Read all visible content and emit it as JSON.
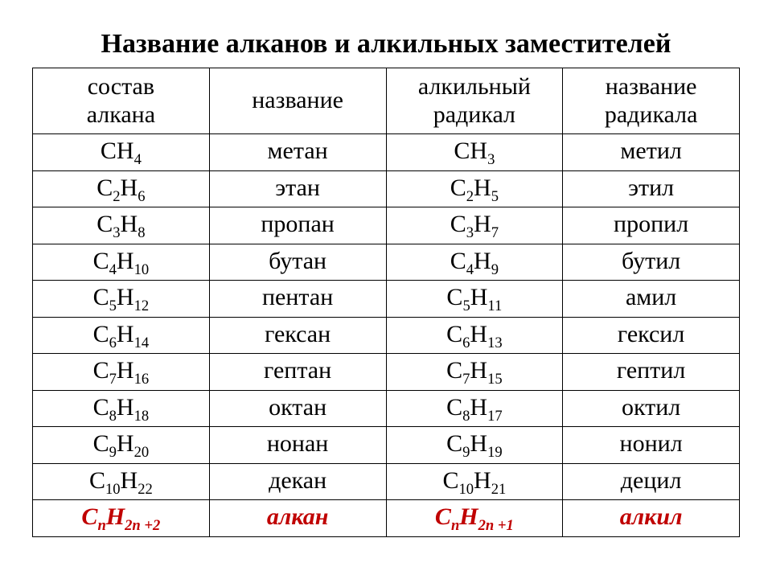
{
  "title": "Название алканов и алкильных заместителей",
  "headers": {
    "c0l1": "состав",
    "c0l2": "алкана",
    "c1l1": "название",
    "c1l2": "",
    "c2l1": "алкильный",
    "c2l2": "радикал",
    "c3l1": "название",
    "c3l2": "радикала"
  },
  "rows": [
    {
      "alk": {
        "C": "C",
        "cs": "",
        "H": "H",
        "hs": "4"
      },
      "alk_name": "метан",
      "rad": {
        "C": "C",
        "cs": "",
        "H": "H",
        "hs": "3"
      },
      "rad_name": "метил"
    },
    {
      "alk": {
        "C": "C",
        "cs": "2",
        "H": "H",
        "hs": "6"
      },
      "alk_name": "этан",
      "rad": {
        "C": "C",
        "cs": "2",
        "H": "H",
        "hs": "5"
      },
      "rad_name": "этил"
    },
    {
      "alk": {
        "C": "C",
        "cs": "3",
        "H": "H",
        "hs": "8"
      },
      "alk_name": "пропан",
      "rad": {
        "C": "C",
        "cs": "3",
        "H": "H",
        "hs": "7"
      },
      "rad_name": "пропил"
    },
    {
      "alk": {
        "C": "C",
        "cs": "4",
        "H": "H",
        "hs": "10"
      },
      "alk_name": "бутан",
      "rad": {
        "C": "C",
        "cs": "4",
        "H": "H",
        "hs": "9"
      },
      "rad_name": "бутил"
    },
    {
      "alk": {
        "C": "C",
        "cs": "5",
        "H": "H",
        "hs": "12"
      },
      "alk_name": "пентан",
      "rad": {
        "C": "C",
        "cs": "5",
        "H": "H",
        "hs": "11"
      },
      "rad_name": "амил"
    },
    {
      "alk": {
        "C": "C",
        "cs": "6",
        "H": "H",
        "hs": "14"
      },
      "alk_name": "гексан",
      "rad": {
        "C": "C",
        "cs": "6",
        "H": "H",
        "hs": "13"
      },
      "rad_name": "гексил"
    },
    {
      "alk": {
        "C": "C",
        "cs": "7",
        "H": "H",
        "hs": "16"
      },
      "alk_name": "гептан",
      "rad": {
        "C": "C",
        "cs": "7",
        "H": "H",
        "hs": "15"
      },
      "rad_name": "гептил"
    },
    {
      "alk": {
        "C": "C",
        "cs": "8",
        "H": "H",
        "hs": "18"
      },
      "alk_name": "октан",
      "rad": {
        "C": "C",
        "cs": "8",
        "H": "H",
        "hs": "17"
      },
      "rad_name": "октил"
    },
    {
      "alk": {
        "C": "C",
        "cs": "9",
        "H": "H",
        "hs": "20"
      },
      "alk_name": "нонан",
      "rad": {
        "C": "C",
        "cs": "9",
        "H": "H",
        "hs": "19"
      },
      "rad_name": "нонил"
    },
    {
      "alk": {
        "C": "C",
        "cs": "10",
        "H": "H",
        "hs": "22"
      },
      "alk_name": "декан",
      "rad": {
        "C": "C",
        "cs": "10",
        "H": "H",
        "hs": "21"
      },
      "rad_name": "децил"
    }
  ],
  "general": {
    "alk": {
      "C": "C",
      "cs": "n",
      "H": "H",
      "hs": "2n +2"
    },
    "alk_name": "алкан",
    "rad": {
      "C": "C",
      "cs": "n",
      "H": "H",
      "hs": "2n +1"
    },
    "rad_name": "алкил"
  },
  "style": {
    "title_fontsize": 34,
    "cell_fontsize": 30,
    "text_color": "#000000",
    "accent_color": "#c00000",
    "border_color": "#000000",
    "background": "#ffffff",
    "font_family": "Times New Roman"
  }
}
